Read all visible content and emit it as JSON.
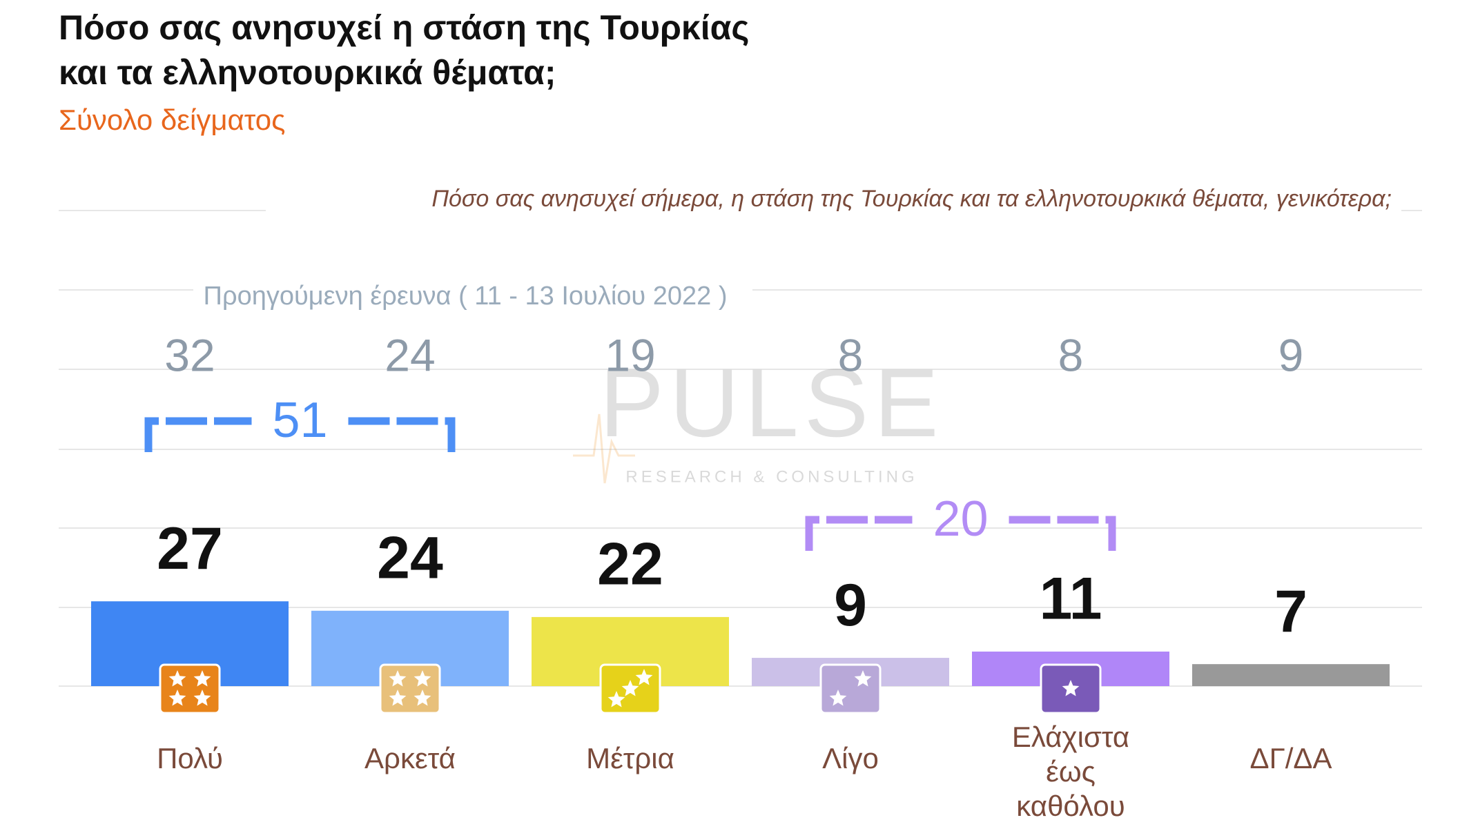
{
  "chart_data": {
    "type": "bar",
    "title": "Πόσο σας ανησυχεί η στάση της Τουρκίας",
    "title_line2": "και τα ελληνοτουρκικά θέματα;",
    "subtitle": "Σύνολο δείγματος",
    "question": "Πόσο σας ανησυχεί σήμερα, η στάση της Τουρκίας και τα ελληνοτουρκικά θέματα, γενικότερα;",
    "categories": [
      "Πολύ",
      "Αρκετά",
      "Μέτρια",
      "Λίγο",
      "Ελάχιστα έως καθόλου",
      "ΔΓ/ΔΑ"
    ],
    "values": [
      27,
      24,
      22,
      9,
      11,
      7
    ],
    "colors": [
      "#3f86f3",
      "#7fb2fb",
      "#ede44a",
      "#cbc0e8",
      "#b086f8",
      "#999999"
    ],
    "previous_label": "Προηγούμενη έρευνα  ( 11 - 13 Ιουλίου  2022 )",
    "previous_values": [
      32,
      24,
      19,
      8,
      8,
      9
    ],
    "groups": [
      {
        "value": 51,
        "categories": [
          "Πολύ",
          "Αρκετά"
        ],
        "color": "#4d8ff5"
      },
      {
        "value": 20,
        "categories": [
          "Λίγο",
          "Ελάχιστα έως καθόλου"
        ],
        "color": "#b28cf5"
      }
    ],
    "watermark": "PULSE",
    "watermark_tagline": "RESEARCH & CONSULTING"
  }
}
